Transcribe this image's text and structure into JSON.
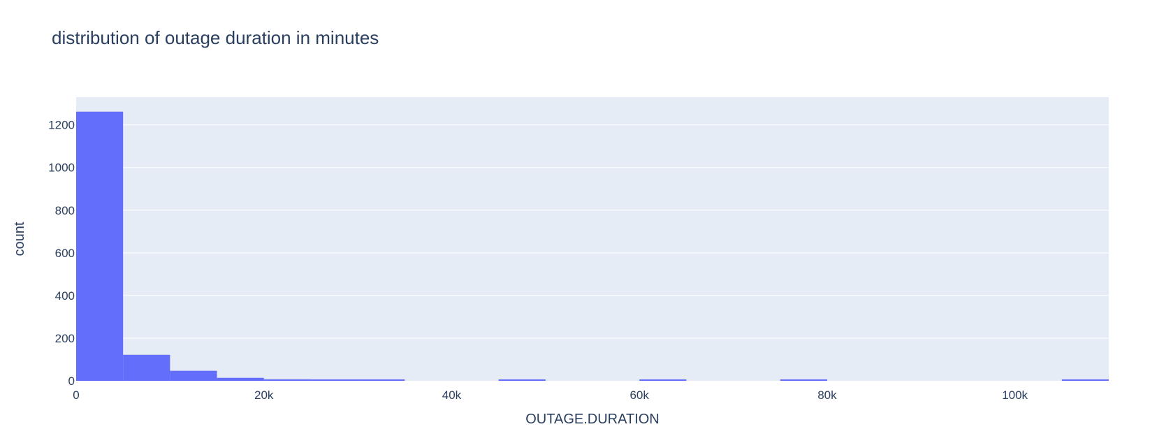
{
  "chart_data": {
    "type": "bar",
    "title": "distribution of outage duration in minutes",
    "xlabel": "OUTAGE.DURATION",
    "ylabel": "count",
    "xlim": [
      0,
      110000
    ],
    "ylim": [
      0,
      1330
    ],
    "bin_width": 5000,
    "bins": [
      {
        "start": 0,
        "end": 5000,
        "count": 1262
      },
      {
        "start": 5000,
        "end": 10000,
        "count": 122
      },
      {
        "start": 10000,
        "end": 15000,
        "count": 47
      },
      {
        "start": 15000,
        "end": 20000,
        "count": 14
      },
      {
        "start": 20000,
        "end": 25000,
        "count": 7
      },
      {
        "start": 25000,
        "end": 30000,
        "count": 3
      },
      {
        "start": 30000,
        "end": 35000,
        "count": 3
      },
      {
        "start": 35000,
        "end": 40000,
        "count": 0
      },
      {
        "start": 40000,
        "end": 45000,
        "count": 0
      },
      {
        "start": 45000,
        "end": 50000,
        "count": 2
      },
      {
        "start": 50000,
        "end": 55000,
        "count": 0
      },
      {
        "start": 55000,
        "end": 60000,
        "count": 0
      },
      {
        "start": 60000,
        "end": 65000,
        "count": 2
      },
      {
        "start": 65000,
        "end": 70000,
        "count": 0
      },
      {
        "start": 70000,
        "end": 75000,
        "count": 0
      },
      {
        "start": 75000,
        "end": 80000,
        "count": 2
      },
      {
        "start": 80000,
        "end": 85000,
        "count": 0
      },
      {
        "start": 85000,
        "end": 90000,
        "count": 0
      },
      {
        "start": 90000,
        "end": 95000,
        "count": 0
      },
      {
        "start": 95000,
        "end": 100000,
        "count": 0
      },
      {
        "start": 100000,
        "end": 105000,
        "count": 0
      },
      {
        "start": 105000,
        "end": 110000,
        "count": 2
      }
    ],
    "x_ticks": [
      {
        "value": 0,
        "label": "0"
      },
      {
        "value": 20000,
        "label": "20k"
      },
      {
        "value": 40000,
        "label": "40k"
      },
      {
        "value": 60000,
        "label": "60k"
      },
      {
        "value": 80000,
        "label": "80k"
      },
      {
        "value": 100000,
        "label": "100k"
      }
    ],
    "y_ticks": [
      {
        "value": 0,
        "label": "0"
      },
      {
        "value": 200,
        "label": "200"
      },
      {
        "value": 400,
        "label": "400"
      },
      {
        "value": 600,
        "label": "600"
      },
      {
        "value": 800,
        "label": "800"
      },
      {
        "value": 1000,
        "label": "1000"
      },
      {
        "value": 1200,
        "label": "1200"
      }
    ],
    "grid": true,
    "colors": {
      "bar": "#636efa",
      "plot_background": "#e5ecf6",
      "gridline": "#ffffff",
      "text": "#2a3f5f"
    }
  }
}
